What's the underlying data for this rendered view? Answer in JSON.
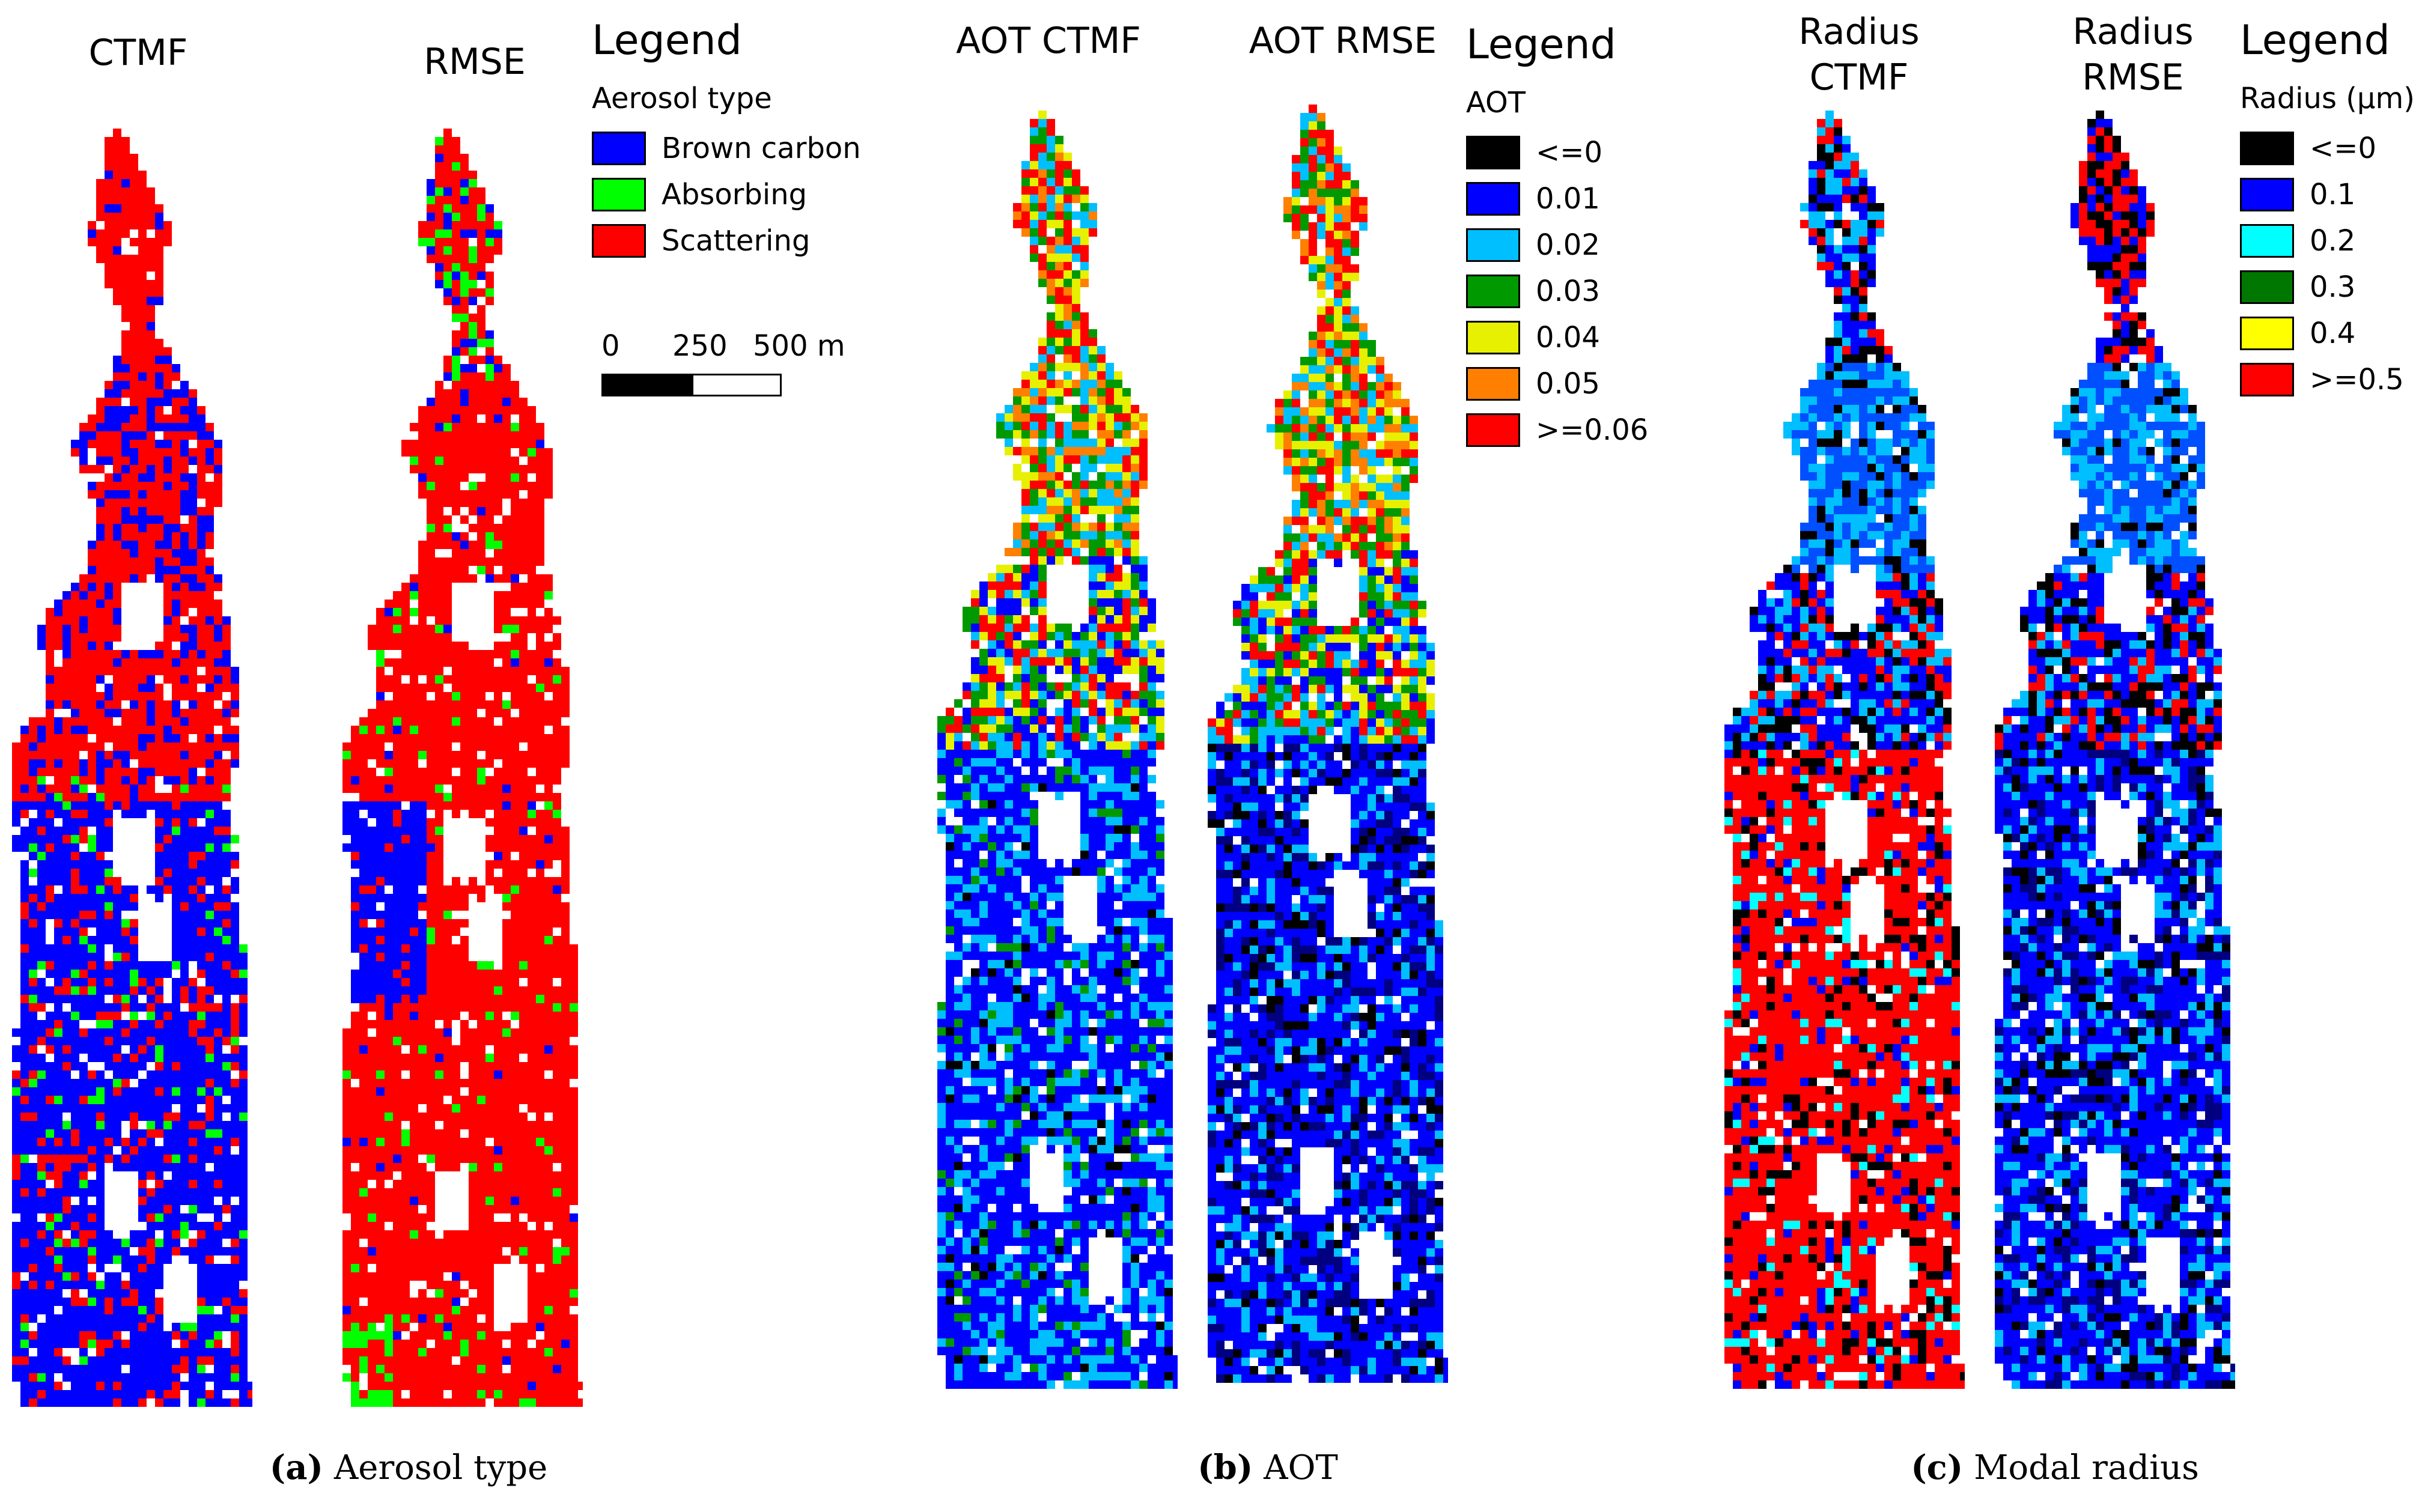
{
  "panels": [
    {
      "id": "a",
      "maps": [
        {
          "title": "CTMF",
          "scheme": "type_ctmf"
        },
        {
          "title": "RMSE",
          "scheme": "type_rmse"
        }
      ],
      "legend": {
        "heading": "Legend",
        "subtitle": "Aerosol type",
        "items": [
          {
            "label": "Brown carbon",
            "color": "#0000ff"
          },
          {
            "label": "Absorbing",
            "color": "#00ff00"
          },
          {
            "label": "Scattering",
            "color": "#ff0000"
          }
        ],
        "scalebar": {
          "labels": [
            "0",
            "250",
            "500 m"
          ]
        }
      },
      "caption": {
        "letter": "(a)",
        "text": "Aerosol type"
      }
    },
    {
      "id": "b",
      "maps": [
        {
          "title": "AOT CTMF",
          "scheme": "aot_ctmf"
        },
        {
          "title": "AOT RMSE",
          "scheme": "aot_rmse"
        }
      ],
      "legend": {
        "heading": "Legend",
        "subtitle": "AOT",
        "items": [
          {
            "label": "<=0",
            "color": "#000000"
          },
          {
            "label": "0.01",
            "color": "#0000ff"
          },
          {
            "label": "0.02",
            "color": "#00bfff"
          },
          {
            "label": "0.03",
            "color": "#009900"
          },
          {
            "label": "0.04",
            "color": "#e6f000"
          },
          {
            "label": "0.05",
            "color": "#ff8000"
          },
          {
            "label": ">=0.06",
            "color": "#ff0000"
          }
        ]
      },
      "caption": {
        "letter": "(b)",
        "text": "AOT"
      }
    },
    {
      "id": "c",
      "maps": [
        {
          "title": "Radius\nCTMF",
          "scheme": "rad_ctmf"
        },
        {
          "title": "Radius\nRMSE",
          "scheme": "rad_rmse"
        }
      ],
      "legend": {
        "heading": "Legend",
        "subtitle": "Radius (µm)",
        "items": [
          {
            "label": "<=0",
            "color": "#000000"
          },
          {
            "label": "0.1",
            "color": "#0000ff"
          },
          {
            "label": "0.2",
            "color": "#00ffff"
          },
          {
            "label": "0.3",
            "color": "#007700"
          },
          {
            "label": "0.4",
            "color": "#ffff00"
          },
          {
            "label": ">=0.5",
            "color": "#ff0000"
          }
        ]
      },
      "caption": {
        "letter": "(c)",
        "text": "Modal radius"
      }
    }
  ]
}
